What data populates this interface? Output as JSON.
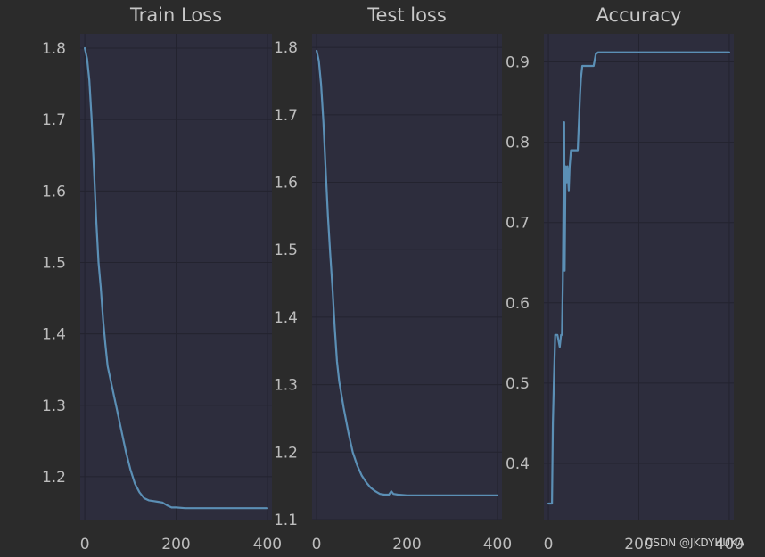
{
  "colors": {
    "background": "#2b2b2b",
    "plot_background": "#2d2d3d",
    "line": "#5b8fb5",
    "text": "#bdbdbd"
  },
  "watermark": "CSDN @JKDYHUKA",
  "chart_data": [
    {
      "type": "line",
      "title": "Train Loss",
      "xlabel": "",
      "ylabel": "",
      "xlim": [
        -10,
        410
      ],
      "ylim": [
        1.14,
        1.82
      ],
      "xticks": [
        0,
        200,
        400
      ],
      "yticks": [
        1.2,
        1.3,
        1.4,
        1.5,
        1.6,
        1.7,
        1.8
      ],
      "ytick_labels": [
        "1.2",
        "1.3",
        "1.4",
        "1.5",
        "1.6",
        "1.7",
        "1.8"
      ],
      "grid": true,
      "x": [
        0,
        5,
        10,
        15,
        20,
        25,
        30,
        35,
        40,
        45,
        50,
        60,
        70,
        80,
        90,
        100,
        110,
        120,
        130,
        140,
        150,
        160,
        170,
        180,
        190,
        200,
        220,
        250,
        300,
        350,
        400
      ],
      "series": [
        {
          "values": [
            1.8,
            1.785,
            1.755,
            1.7,
            1.63,
            1.56,
            1.5,
            1.465,
            1.42,
            1.385,
            1.355,
            1.325,
            1.295,
            1.265,
            1.235,
            1.21,
            1.19,
            1.178,
            1.17,
            1.167,
            1.166,
            1.165,
            1.164,
            1.16,
            1.157,
            1.157,
            1.156,
            1.156,
            1.156,
            1.156,
            1.156
          ]
        }
      ]
    },
    {
      "type": "line",
      "title": "Test loss",
      "xlabel": "",
      "ylabel": "",
      "xlim": [
        -10,
        410
      ],
      "ylim": [
        1.1,
        1.82
      ],
      "xticks": [
        0,
        200,
        400
      ],
      "yticks": [
        1.1,
        1.2,
        1.3,
        1.4,
        1.5,
        1.6,
        1.7,
        1.8
      ],
      "ytick_labels": [
        "1.1",
        "1.2",
        "1.3",
        "1.4",
        "1.5",
        "1.6",
        "1.7",
        "1.8"
      ],
      "grid": true,
      "x": [
        0,
        5,
        10,
        15,
        20,
        25,
        30,
        35,
        40,
        45,
        50,
        60,
        70,
        80,
        90,
        100,
        110,
        120,
        130,
        140,
        150,
        160,
        165,
        170,
        180,
        200,
        250,
        300,
        350,
        400
      ],
      "series": [
        {
          "values": [
            1.795,
            1.78,
            1.745,
            1.69,
            1.62,
            1.55,
            1.495,
            1.445,
            1.385,
            1.335,
            1.305,
            1.265,
            1.23,
            1.2,
            1.18,
            1.165,
            1.155,
            1.147,
            1.142,
            1.138,
            1.137,
            1.137,
            1.142,
            1.138,
            1.137,
            1.136,
            1.136,
            1.136,
            1.136,
            1.136
          ]
        }
      ]
    },
    {
      "type": "line",
      "title": "Accuracy",
      "xlabel": "",
      "ylabel": "",
      "xlim": [
        -10,
        410
      ],
      "ylim": [
        0.33,
        0.935
      ],
      "xticks": [
        0,
        200,
        400
      ],
      "yticks": [
        0.4,
        0.5,
        0.6,
        0.7,
        0.8,
        0.9
      ],
      "ytick_labels": [
        "0.4",
        "0.5",
        "0.6",
        "0.7",
        "0.8",
        "0.9"
      ],
      "grid": true,
      "x": [
        0,
        8,
        10,
        12,
        15,
        20,
        25,
        28,
        30,
        32,
        35,
        36,
        38,
        40,
        42,
        45,
        47,
        50,
        52,
        55,
        60,
        65,
        70,
        72,
        75,
        80,
        90,
        100,
        105,
        110,
        150,
        200,
        300,
        400
      ],
      "series": [
        {
          "values": [
            0.35,
            0.35,
            0.45,
            0.5,
            0.56,
            0.56,
            0.545,
            0.56,
            0.56,
            0.63,
            0.825,
            0.64,
            0.77,
            0.75,
            0.77,
            0.74,
            0.77,
            0.79,
            0.79,
            0.79,
            0.79,
            0.79,
            0.86,
            0.88,
            0.895,
            0.895,
            0.895,
            0.895,
            0.91,
            0.912,
            0.912,
            0.912,
            0.912,
            0.912
          ]
        }
      ]
    }
  ]
}
